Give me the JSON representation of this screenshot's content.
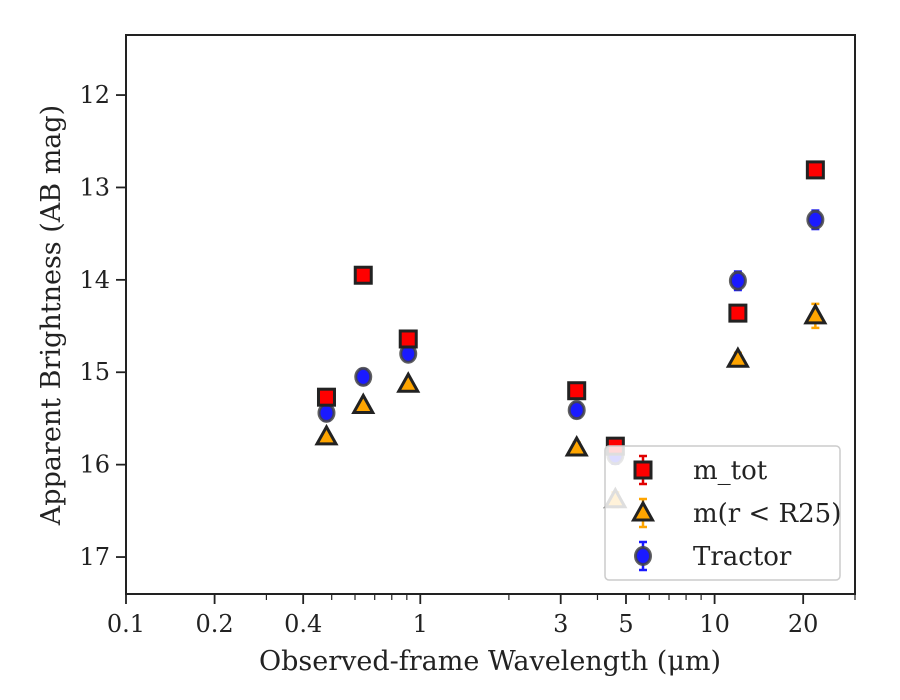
{
  "chart_data": {
    "type": "scatter",
    "xlabel": "Observed-frame Wavelength (μm)",
    "ylabel": "Apparent Brightness (AB mag)",
    "xscale": "log",
    "xlim": [
      0.1,
      30
    ],
    "ylim": [
      17.4,
      11.35
    ],
    "y_inverted": true,
    "x_ticks": [
      0.1,
      0.2,
      0.4,
      1,
      3,
      5,
      10,
      20
    ],
    "x_tick_labels": [
      "0.1",
      "0.2",
      "0.4",
      "1",
      "3",
      "5",
      "10",
      "20"
    ],
    "y_ticks": [
      12,
      13,
      14,
      15,
      16,
      17
    ],
    "y_tick_labels": [
      "12",
      "13",
      "14",
      "15",
      "16",
      "17"
    ],
    "grid": false,
    "legend_position": "lower-right",
    "series": [
      {
        "name": "m_tot",
        "marker": "square",
        "color": "#ff0000",
        "errorbar_color": "#e00000",
        "points": [
          {
            "x": 0.48,
            "y": 15.27,
            "err": 0.06
          },
          {
            "x": 0.64,
            "y": 13.95,
            "err": 0.05
          },
          {
            "x": 0.91,
            "y": 14.64,
            "err": 0.06
          },
          {
            "x": 3.4,
            "y": 15.2,
            "err": 0.06
          },
          {
            "x": 4.6,
            "y": 15.8,
            "err": 0.07
          },
          {
            "x": 12.0,
            "y": 14.36,
            "err": 0.07
          },
          {
            "x": 22.0,
            "y": 12.81,
            "err": 0.08
          }
        ]
      },
      {
        "name": "m(r < R25)",
        "marker": "triangle",
        "color": "#ffa500",
        "errorbar_color": "#ffa500",
        "points": [
          {
            "x": 0.48,
            "y": 15.7,
            "err": 0.05
          },
          {
            "x": 0.64,
            "y": 15.36,
            "err": 0.05
          },
          {
            "x": 0.91,
            "y": 15.13,
            "err": 0.05
          },
          {
            "x": 3.4,
            "y": 15.82,
            "err": 0.06
          },
          {
            "x": 4.6,
            "y": 16.38,
            "err": 0.08
          },
          {
            "x": 12.0,
            "y": 14.86,
            "err": 0.07
          },
          {
            "x": 22.0,
            "y": 14.39,
            "err": 0.13
          }
        ]
      },
      {
        "name": "Tractor",
        "marker": "circle",
        "color": "#1a1aff",
        "errorbar_color": "#1a1aff",
        "points": [
          {
            "x": 0.48,
            "y": 15.44,
            "err": 0.08
          },
          {
            "x": 0.64,
            "y": 15.05,
            "err": 0.08
          },
          {
            "x": 0.91,
            "y": 14.8,
            "err": 0.07
          },
          {
            "x": 3.4,
            "y": 15.41,
            "err": 0.08
          },
          {
            "x": 4.6,
            "y": 15.9,
            "err": 0.09
          },
          {
            "x": 12.0,
            "y": 14.01,
            "err": 0.1
          },
          {
            "x": 22.0,
            "y": 13.35,
            "err": 0.1
          }
        ]
      }
    ]
  }
}
